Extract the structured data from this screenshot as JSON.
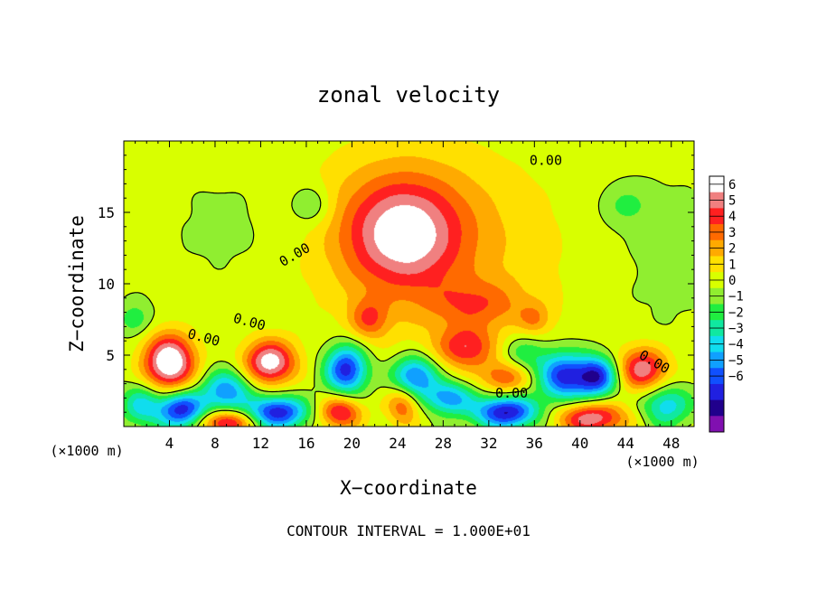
{
  "chart_data": {
    "type": "heatmap",
    "title": "zonal velocity",
    "xlabel": "X−coordinate",
    "ylabel": "Z−coordinate",
    "x_unit_left": "(×1000 m)",
    "x_unit_right": "(×1000 m)",
    "footer": "CONTOUR INTERVAL = 1.000E+01",
    "xlim": [
      0,
      50
    ],
    "ylim": [
      0,
      20
    ],
    "x_ticks": [
      {
        "v": 4,
        "label": "4"
      },
      {
        "v": 8,
        "label": "8"
      },
      {
        "v": 12,
        "label": "12"
      },
      {
        "v": 16,
        "label": "16"
      },
      {
        "v": 20,
        "label": "20"
      },
      {
        "v": 24,
        "label": "24"
      },
      {
        "v": 28,
        "label": "28"
      },
      {
        "v": 32,
        "label": "32"
      },
      {
        "v": 36,
        "label": "36"
      },
      {
        "v": 40,
        "label": "40"
      },
      {
        "v": 44,
        "label": "44"
      },
      {
        "v": 48,
        "label": "48"
      }
    ],
    "y_ticks": [
      {
        "v": 5,
        "label": "5"
      },
      {
        "v": 10,
        "label": "10"
      },
      {
        "v": 15,
        "label": "15"
      }
    ],
    "colorbar": {
      "levels": [
        "6",
        "5",
        "4",
        "3",
        "2",
        "1",
        "0",
        "−1",
        "−2",
        "−3",
        "−4",
        "−5",
        "−6"
      ],
      "colors": [
        "#ffffff",
        "#f08080",
        "#ff2020",
        "#ff6a00",
        "#ffaa00",
        "#ffe000",
        "#d8ff00",
        "#90ee30",
        "#20ee40",
        "#10e8a0",
        "#10ddee",
        "#10a0ff",
        "#1050ff",
        "#2020e0",
        "#20008c",
        "#8010b0"
      ]
    },
    "background_color": "#40e030",
    "features": [
      {
        "x": 24.5,
        "y": 13.5,
        "sx": 3.4,
        "sy": 2.6,
        "value": 4.5
      },
      {
        "x": 24,
        "y": 14,
        "sx": 7.0,
        "sy": 4.0,
        "value": 2.0
      },
      {
        "x": 30,
        "y": 11,
        "sx": 9.0,
        "sy": 6.0,
        "value": 1.0
      },
      {
        "x": 21.5,
        "y": 7.5,
        "sx": 1.2,
        "sy": 1.0,
        "value": 3.0
      },
      {
        "x": 31,
        "y": 8.5,
        "sx": 3.0,
        "sy": 1.2,
        "value": 2.5
      },
      {
        "x": 30,
        "y": 5.5,
        "sx": 1.8,
        "sy": 1.0,
        "value": 4.0
      },
      {
        "x": 33.5,
        "y": 3.5,
        "sx": 1.5,
        "sy": 0.8,
        "value": 3.5
      },
      {
        "x": 4,
        "y": 4.5,
        "sx": 1.6,
        "sy": 1.4,
        "value": 7.5
      },
      {
        "x": 12.8,
        "y": 4.5,
        "sx": 1.6,
        "sy": 1.1,
        "value": 6.5
      },
      {
        "x": 45.5,
        "y": 4.0,
        "sx": 1.6,
        "sy": 1.1,
        "value": 5.5
      },
      {
        "x": 19,
        "y": 1.0,
        "sx": 1.3,
        "sy": 0.8,
        "value": 5.0
      },
      {
        "x": 9,
        "y": 0.3,
        "sx": 1.6,
        "sy": 0.6,
        "value": 5.5
      },
      {
        "x": 41,
        "y": 0.6,
        "sx": 2.2,
        "sy": 0.8,
        "value": 5.5
      },
      {
        "x": 24.5,
        "y": 1.5,
        "sx": 1.0,
        "sy": 1.0,
        "value": 3.5
      },
      {
        "x": 36,
        "y": 7.5,
        "sx": 1.0,
        "sy": 0.8,
        "value": 2.0
      },
      {
        "x": 5,
        "y": 1.2,
        "sx": 1.5,
        "sy": 0.9,
        "value": -7.0
      },
      {
        "x": 13.5,
        "y": 1.0,
        "sx": 1.8,
        "sy": 0.8,
        "value": -7.0
      },
      {
        "x": 33.5,
        "y": 1.0,
        "sx": 2.0,
        "sy": 0.8,
        "value": -7.5
      },
      {
        "x": 19.5,
        "y": 4.0,
        "sx": 1.3,
        "sy": 1.2,
        "value": -7.0
      },
      {
        "x": 25.5,
        "y": 3.5,
        "sx": 1.4,
        "sy": 1.0,
        "value": -6.0
      },
      {
        "x": 28.5,
        "y": 2.0,
        "sx": 1.5,
        "sy": 0.8,
        "value": -5.0
      },
      {
        "x": 38.5,
        "y": 3.5,
        "sx": 1.5,
        "sy": 1.2,
        "value": -6.5
      },
      {
        "x": 41.5,
        "y": 3.5,
        "sx": 1.3,
        "sy": 1.0,
        "value": -7.0
      },
      {
        "x": 9,
        "y": 2.5,
        "sx": 1.5,
        "sy": 1.0,
        "value": -5.0
      },
      {
        "x": 47.5,
        "y": 1.5,
        "sx": 1.5,
        "sy": 1.0,
        "value": -4.0
      },
      {
        "x": 1.5,
        "y": 1.5,
        "sx": 1.2,
        "sy": 1.0,
        "value": -3.5
      },
      {
        "x": 35,
        "y": 5.0,
        "sx": 1.5,
        "sy": 1.0,
        "value": -2.5
      },
      {
        "x": 16.5,
        "y": 15.5,
        "sx": 1.2,
        "sy": 1.0,
        "value": -2.0
      },
      {
        "x": 44,
        "y": 15.5,
        "sx": 1.5,
        "sy": 1.0,
        "value": -1.5
      },
      {
        "x": 1,
        "y": 7.5,
        "sx": 1.0,
        "sy": 0.8,
        "value": -2.0
      },
      {
        "x": 12,
        "y": 14,
        "sx": 5.0,
        "sy": 3.0,
        "value": -0.7
      },
      {
        "x": 47,
        "y": 12,
        "sx": 4.0,
        "sy": 4.0,
        "value": -0.6
      }
    ],
    "contour_labels": [
      {
        "x": 37,
        "y": 18.6,
        "text": "0.00"
      },
      {
        "x": 15,
        "y": 12.0,
        "text": "0.00",
        "angle": -30
      },
      {
        "x": 11,
        "y": 7.3,
        "text": "0.00",
        "angle": 15
      },
      {
        "x": 7,
        "y": 6.2,
        "text": "0.00",
        "angle": 15
      },
      {
        "x": 34,
        "y": 2.3,
        "text": "0.00"
      },
      {
        "x": 46.5,
        "y": 4.5,
        "text": "0.00",
        "angle": 30
      }
    ]
  }
}
